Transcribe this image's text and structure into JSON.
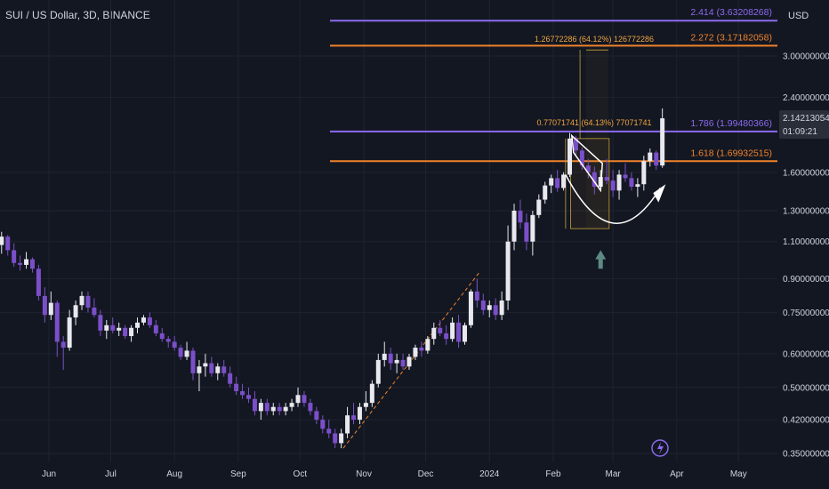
{
  "header": {
    "title": "SUI / US Dollar, 3D, BINANCE",
    "currency": "USD"
  },
  "price_tag": {
    "value": "2.14213054",
    "countdown": "01:09:21"
  },
  "colors": {
    "background": "#131722",
    "grid": "#1f2330",
    "up": "#e8e8ee",
    "down": "#7b4fc9",
    "orange": "#f0832b",
    "purple": "#8c6bf0",
    "text": "#b2b5be",
    "pattern": "#ffffff"
  },
  "chart_data": {
    "type": "candlestick",
    "title": "SUI / US Dollar, 3D, BINANCE",
    "y_scale": "log",
    "ylim": [
      0.335,
      4.25
    ],
    "x_tick_labels": [
      {
        "label": "Jun",
        "date": "2023-06-01"
      },
      {
        "label": "Jul",
        "date": "2023-07-01"
      },
      {
        "label": "Aug",
        "date": "2023-08-01"
      },
      {
        "label": "Sep",
        "date": "2023-09-01"
      },
      {
        "label": "Oct",
        "date": "2023-10-01"
      },
      {
        "label": "Nov",
        "date": "2023-11-01"
      },
      {
        "label": "Dec",
        "date": "2023-12-01"
      },
      {
        "label": "2024",
        "date": "2024-01-01"
      },
      {
        "label": "Feb",
        "date": "2024-02-01"
      },
      {
        "label": "Mar",
        "date": "2024-03-01"
      },
      {
        "label": "Apr",
        "date": "2024-04-01"
      },
      {
        "label": "May",
        "date": "2024-05-01"
      }
    ],
    "y_ticks": [
      {
        "label": "3.00000000",
        "value": 3.0
      },
      {
        "label": "2.40000000",
        "value": 2.4
      },
      {
        "label": "1.60000000",
        "value": 1.6
      },
      {
        "label": "1.30000000",
        "value": 1.3
      },
      {
        "label": "1.10000000",
        "value": 1.1
      },
      {
        "label": "0.90000000",
        "value": 0.9
      },
      {
        "label": "0.75000000",
        "value": 0.75
      },
      {
        "label": "0.60000000",
        "value": 0.6
      },
      {
        "label": "0.50000000",
        "value": 0.5
      },
      {
        "label": "0.42000000",
        "value": 0.42
      },
      {
        "label": "0.35000000",
        "value": 0.35
      }
    ],
    "candles": [
      {
        "date": "2023-05-03",
        "o": 1.18,
        "h": 1.25,
        "l": 1.1,
        "c": 1.12
      },
      {
        "date": "2023-05-06",
        "o": 1.12,
        "h": 1.2,
        "l": 1.05,
        "c": 1.08
      },
      {
        "date": "2023-05-09",
        "o": 1.08,
        "h": 1.16,
        "l": 1.03,
        "c": 1.13
      },
      {
        "date": "2023-05-12",
        "o": 1.13,
        "h": 1.14,
        "l": 1.02,
        "c": 1.05
      },
      {
        "date": "2023-05-15",
        "o": 1.05,
        "h": 1.09,
        "l": 0.96,
        "c": 0.98
      },
      {
        "date": "2023-05-18",
        "o": 0.98,
        "h": 1.02,
        "l": 0.94,
        "c": 0.97
      },
      {
        "date": "2023-05-21",
        "o": 0.97,
        "h": 1.04,
        "l": 0.95,
        "c": 1.0
      },
      {
        "date": "2023-05-24",
        "o": 1.0,
        "h": 1.01,
        "l": 0.93,
        "c": 0.95
      },
      {
        "date": "2023-05-27",
        "o": 0.95,
        "h": 0.97,
        "l": 0.8,
        "c": 0.82
      },
      {
        "date": "2023-05-30",
        "o": 0.82,
        "h": 0.86,
        "l": 0.71,
        "c": 0.74
      },
      {
        "date": "2023-06-02",
        "o": 0.74,
        "h": 0.84,
        "l": 0.72,
        "c": 0.79
      },
      {
        "date": "2023-06-05",
        "o": 0.79,
        "h": 0.8,
        "l": 0.59,
        "c": 0.64
      },
      {
        "date": "2023-06-08",
        "o": 0.64,
        "h": 0.66,
        "l": 0.55,
        "c": 0.62
      },
      {
        "date": "2023-06-11",
        "o": 0.62,
        "h": 0.76,
        "l": 0.61,
        "c": 0.73
      },
      {
        "date": "2023-06-14",
        "o": 0.73,
        "h": 0.8,
        "l": 0.7,
        "c": 0.78
      },
      {
        "date": "2023-06-17",
        "o": 0.78,
        "h": 0.84,
        "l": 0.76,
        "c": 0.82
      },
      {
        "date": "2023-06-20",
        "o": 0.82,
        "h": 0.84,
        "l": 0.75,
        "c": 0.77
      },
      {
        "date": "2023-06-23",
        "o": 0.77,
        "h": 0.81,
        "l": 0.73,
        "c": 0.74
      },
      {
        "date": "2023-06-26",
        "o": 0.74,
        "h": 0.76,
        "l": 0.66,
        "c": 0.68
      },
      {
        "date": "2023-06-29",
        "o": 0.68,
        "h": 0.72,
        "l": 0.65,
        "c": 0.7
      },
      {
        "date": "2023-07-02",
        "o": 0.7,
        "h": 0.73,
        "l": 0.67,
        "c": 0.68
      },
      {
        "date": "2023-07-05",
        "o": 0.68,
        "h": 0.71,
        "l": 0.66,
        "c": 0.69
      },
      {
        "date": "2023-07-08",
        "o": 0.69,
        "h": 0.7,
        "l": 0.65,
        "c": 0.66
      },
      {
        "date": "2023-07-11",
        "o": 0.66,
        "h": 0.7,
        "l": 0.64,
        "c": 0.69
      },
      {
        "date": "2023-07-14",
        "o": 0.69,
        "h": 0.73,
        "l": 0.67,
        "c": 0.71
      },
      {
        "date": "2023-07-17",
        "o": 0.71,
        "h": 0.74,
        "l": 0.7,
        "c": 0.73
      },
      {
        "date": "2023-07-20",
        "o": 0.73,
        "h": 0.75,
        "l": 0.69,
        "c": 0.7
      },
      {
        "date": "2023-07-23",
        "o": 0.7,
        "h": 0.72,
        "l": 0.66,
        "c": 0.67
      },
      {
        "date": "2023-07-26",
        "o": 0.67,
        "h": 0.69,
        "l": 0.64,
        "c": 0.65
      },
      {
        "date": "2023-07-29",
        "o": 0.65,
        "h": 0.66,
        "l": 0.62,
        "c": 0.64
      },
      {
        "date": "2023-08-01",
        "o": 0.64,
        "h": 0.66,
        "l": 0.61,
        "c": 0.62
      },
      {
        "date": "2023-08-04",
        "o": 0.62,
        "h": 0.63,
        "l": 0.58,
        "c": 0.59
      },
      {
        "date": "2023-08-07",
        "o": 0.59,
        "h": 0.64,
        "l": 0.58,
        "c": 0.61
      },
      {
        "date": "2023-08-10",
        "o": 0.61,
        "h": 0.62,
        "l": 0.52,
        "c": 0.54
      },
      {
        "date": "2023-08-13",
        "o": 0.54,
        "h": 0.58,
        "l": 0.49,
        "c": 0.56
      },
      {
        "date": "2023-08-16",
        "o": 0.56,
        "h": 0.6,
        "l": 0.53,
        "c": 0.57
      },
      {
        "date": "2023-08-19",
        "o": 0.57,
        "h": 0.59,
        "l": 0.53,
        "c": 0.54
      },
      {
        "date": "2023-08-22",
        "o": 0.54,
        "h": 0.57,
        "l": 0.52,
        "c": 0.56
      },
      {
        "date": "2023-08-25",
        "o": 0.56,
        "h": 0.58,
        "l": 0.53,
        "c": 0.54
      },
      {
        "date": "2023-08-28",
        "o": 0.54,
        "h": 0.56,
        "l": 0.5,
        "c": 0.51
      },
      {
        "date": "2023-08-31",
        "o": 0.51,
        "h": 0.53,
        "l": 0.48,
        "c": 0.49
      },
      {
        "date": "2023-09-03",
        "o": 0.49,
        "h": 0.51,
        "l": 0.47,
        "c": 0.48
      },
      {
        "date": "2023-09-06",
        "o": 0.48,
        "h": 0.5,
        "l": 0.46,
        "c": 0.47
      },
      {
        "date": "2023-09-09",
        "o": 0.47,
        "h": 0.49,
        "l": 0.43,
        "c": 0.44
      },
      {
        "date": "2023-09-12",
        "o": 0.44,
        "h": 0.47,
        "l": 0.42,
        "c": 0.46
      },
      {
        "date": "2023-09-15",
        "o": 0.46,
        "h": 0.47,
        "l": 0.43,
        "c": 0.44
      },
      {
        "date": "2023-09-18",
        "o": 0.44,
        "h": 0.46,
        "l": 0.43,
        "c": 0.45
      },
      {
        "date": "2023-09-21",
        "o": 0.45,
        "h": 0.46,
        "l": 0.43,
        "c": 0.44
      },
      {
        "date": "2023-09-24",
        "o": 0.44,
        "h": 0.46,
        "l": 0.43,
        "c": 0.45
      },
      {
        "date": "2023-09-27",
        "o": 0.45,
        "h": 0.47,
        "l": 0.44,
        "c": 0.46
      },
      {
        "date": "2023-09-30",
        "o": 0.46,
        "h": 0.5,
        "l": 0.45,
        "c": 0.48
      },
      {
        "date": "2023-10-03",
        "o": 0.48,
        "h": 0.49,
        "l": 0.45,
        "c": 0.46
      },
      {
        "date": "2023-10-06",
        "o": 0.46,
        "h": 0.47,
        "l": 0.43,
        "c": 0.44
      },
      {
        "date": "2023-10-09",
        "o": 0.44,
        "h": 0.45,
        "l": 0.41,
        "c": 0.42
      },
      {
        "date": "2023-10-12",
        "o": 0.42,
        "h": 0.43,
        "l": 0.39,
        "c": 0.4
      },
      {
        "date": "2023-10-15",
        "o": 0.4,
        "h": 0.42,
        "l": 0.38,
        "c": 0.39
      },
      {
        "date": "2023-10-18",
        "o": 0.39,
        "h": 0.4,
        "l": 0.36,
        "c": 0.37
      },
      {
        "date": "2023-10-21",
        "o": 0.37,
        "h": 0.4,
        "l": 0.36,
        "c": 0.39
      },
      {
        "date": "2023-10-24",
        "o": 0.39,
        "h": 0.45,
        "l": 0.38,
        "c": 0.43
      },
      {
        "date": "2023-10-27",
        "o": 0.43,
        "h": 0.46,
        "l": 0.41,
        "c": 0.42
      },
      {
        "date": "2023-10-30",
        "o": 0.42,
        "h": 0.46,
        "l": 0.41,
        "c": 0.45
      },
      {
        "date": "2023-11-02",
        "o": 0.45,
        "h": 0.49,
        "l": 0.44,
        "c": 0.46
      },
      {
        "date": "2023-11-05",
        "o": 0.46,
        "h": 0.52,
        "l": 0.45,
        "c": 0.51
      },
      {
        "date": "2023-11-08",
        "o": 0.51,
        "h": 0.6,
        "l": 0.5,
        "c": 0.58
      },
      {
        "date": "2023-11-11",
        "o": 0.58,
        "h": 0.64,
        "l": 0.56,
        "c": 0.6
      },
      {
        "date": "2023-11-14",
        "o": 0.6,
        "h": 0.62,
        "l": 0.55,
        "c": 0.57
      },
      {
        "date": "2023-11-17",
        "o": 0.57,
        "h": 0.6,
        "l": 0.54,
        "c": 0.58
      },
      {
        "date": "2023-11-20",
        "o": 0.58,
        "h": 0.6,
        "l": 0.55,
        "c": 0.56
      },
      {
        "date": "2023-11-23",
        "o": 0.56,
        "h": 0.6,
        "l": 0.55,
        "c": 0.59
      },
      {
        "date": "2023-11-26",
        "o": 0.59,
        "h": 0.63,
        "l": 0.58,
        "c": 0.62
      },
      {
        "date": "2023-11-29",
        "o": 0.62,
        "h": 0.64,
        "l": 0.59,
        "c": 0.61
      },
      {
        "date": "2023-12-02",
        "o": 0.61,
        "h": 0.66,
        "l": 0.6,
        "c": 0.65
      },
      {
        "date": "2023-12-05",
        "o": 0.65,
        "h": 0.71,
        "l": 0.63,
        "c": 0.69
      },
      {
        "date": "2023-12-08",
        "o": 0.69,
        "h": 0.72,
        "l": 0.66,
        "c": 0.67
      },
      {
        "date": "2023-12-11",
        "o": 0.67,
        "h": 0.7,
        "l": 0.63,
        "c": 0.65
      },
      {
        "date": "2023-12-14",
        "o": 0.65,
        "h": 0.73,
        "l": 0.64,
        "c": 0.71
      },
      {
        "date": "2023-12-17",
        "o": 0.71,
        "h": 0.74,
        "l": 0.62,
        "c": 0.64
      },
      {
        "date": "2023-12-20",
        "o": 0.64,
        "h": 0.71,
        "l": 0.63,
        "c": 0.7
      },
      {
        "date": "2023-12-23",
        "o": 0.7,
        "h": 0.85,
        "l": 0.69,
        "c": 0.84
      },
      {
        "date": "2023-12-26",
        "o": 0.84,
        "h": 0.9,
        "l": 0.77,
        "c": 0.8
      },
      {
        "date": "2023-12-29",
        "o": 0.8,
        "h": 0.83,
        "l": 0.74,
        "c": 0.76
      },
      {
        "date": "2024-01-01",
        "o": 0.76,
        "h": 0.8,
        "l": 0.73,
        "c": 0.78
      },
      {
        "date": "2024-01-04",
        "o": 0.78,
        "h": 0.81,
        "l": 0.72,
        "c": 0.74
      },
      {
        "date": "2024-01-07",
        "o": 0.74,
        "h": 0.84,
        "l": 0.72,
        "c": 0.8
      },
      {
        "date": "2024-01-10",
        "o": 0.8,
        "h": 1.2,
        "l": 0.76,
        "c": 1.1
      },
      {
        "date": "2024-01-13",
        "o": 1.1,
        "h": 1.35,
        "l": 1.05,
        "c": 1.3
      },
      {
        "date": "2024-01-16",
        "o": 1.3,
        "h": 1.38,
        "l": 1.18,
        "c": 1.22
      },
      {
        "date": "2024-01-19",
        "o": 1.22,
        "h": 1.28,
        "l": 1.05,
        "c": 1.1
      },
      {
        "date": "2024-01-22",
        "o": 1.1,
        "h": 1.3,
        "l": 1.02,
        "c": 1.27
      },
      {
        "date": "2024-01-25",
        "o": 1.27,
        "h": 1.42,
        "l": 1.25,
        "c": 1.38
      },
      {
        "date": "2024-01-28",
        "o": 1.38,
        "h": 1.52,
        "l": 1.35,
        "c": 1.49
      },
      {
        "date": "2024-01-31",
        "o": 1.49,
        "h": 1.58,
        "l": 1.43,
        "c": 1.55
      },
      {
        "date": "2024-02-03",
        "o": 1.55,
        "h": 1.62,
        "l": 1.44,
        "c": 1.47
      },
      {
        "date": "2024-02-06",
        "o": 1.47,
        "h": 1.6,
        "l": 1.45,
        "c": 1.58
      },
      {
        "date": "2024-02-09",
        "o": 1.58,
        "h": 1.98,
        "l": 1.56,
        "c": 1.92
      },
      {
        "date": "2024-02-12",
        "o": 1.92,
        "h": 1.95,
        "l": 1.75,
        "c": 1.8
      },
      {
        "date": "2024-02-15",
        "o": 1.8,
        "h": 1.83,
        "l": 1.62,
        "c": 1.66
      },
      {
        "date": "2024-02-18",
        "o": 1.66,
        "h": 1.72,
        "l": 1.55,
        "c": 1.6
      },
      {
        "date": "2024-02-21",
        "o": 1.6,
        "h": 1.65,
        "l": 1.42,
        "c": 1.48
      },
      {
        "date": "2024-02-24",
        "o": 1.48,
        "h": 1.62,
        "l": 1.45,
        "c": 1.56
      },
      {
        "date": "2024-02-27",
        "o": 1.56,
        "h": 1.72,
        "l": 1.5,
        "c": 1.53
      },
      {
        "date": "2024-03-01",
        "o": 1.53,
        "h": 1.62,
        "l": 1.4,
        "c": 1.45
      },
      {
        "date": "2024-03-04",
        "o": 1.45,
        "h": 1.62,
        "l": 1.38,
        "c": 1.58
      },
      {
        "date": "2024-03-07",
        "o": 1.58,
        "h": 1.68,
        "l": 1.52,
        "c": 1.55
      },
      {
        "date": "2024-03-10",
        "o": 1.55,
        "h": 1.6,
        "l": 1.45,
        "c": 1.48
      },
      {
        "date": "2024-03-13",
        "o": 1.48,
        "h": 1.55,
        "l": 1.4,
        "c": 1.5
      },
      {
        "date": "2024-03-16",
        "o": 1.5,
        "h": 1.75,
        "l": 1.45,
        "c": 1.7
      },
      {
        "date": "2024-03-19",
        "o": 1.7,
        "h": 1.82,
        "l": 1.65,
        "c": 1.78
      },
      {
        "date": "2024-03-22",
        "o": 1.78,
        "h": 1.8,
        "l": 1.62,
        "c": 1.66
      },
      {
        "date": "2024-03-25",
        "o": 1.66,
        "h": 2.26,
        "l": 1.64,
        "c": 2.14213054
      }
    ],
    "levels": [
      {
        "label": "2.414 (3.63208268)",
        "value": 3.63208268,
        "color": "purple"
      },
      {
        "label": "2.272 (3.17182058)",
        "value": 3.17182058,
        "color": "orange"
      },
      {
        "label": "1.786 (1.99480366)",
        "value": 1.99480366,
        "color": "purple"
      },
      {
        "label": "1.618 (1.69932515)",
        "value": 1.69932515,
        "color": "orange"
      }
    ],
    "annotations": [
      {
        "label": "1.26772286 (64.12%) 126772286",
        "value": 3.24
      },
      {
        "label": "0.77071741 (64.13%) 77071741",
        "value": 2.06
      }
    ]
  }
}
